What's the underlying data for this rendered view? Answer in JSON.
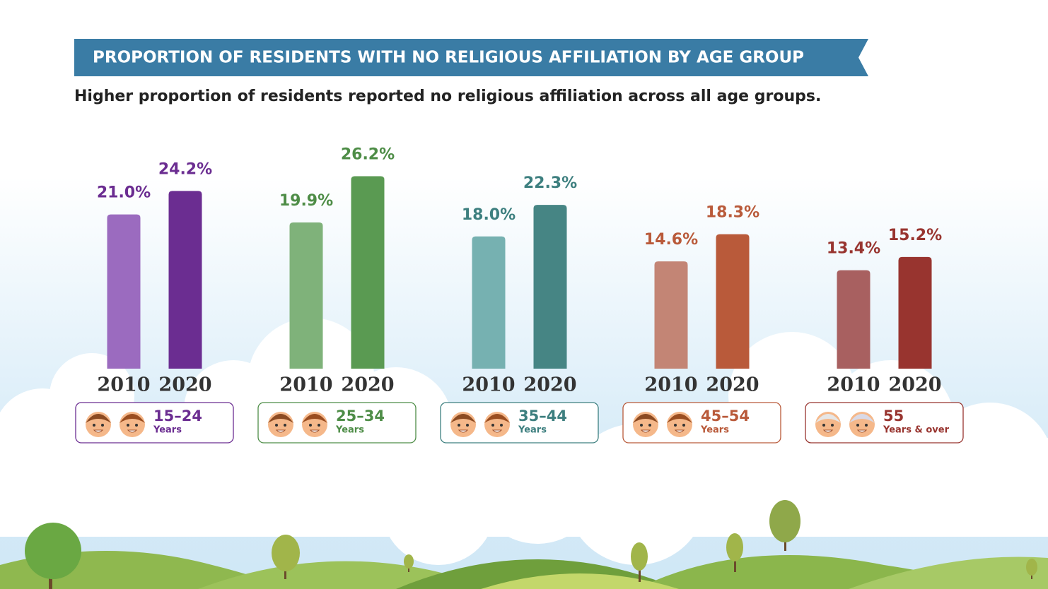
{
  "chart_data": {
    "type": "bar",
    "title": "PROPORTION OF RESIDENTS WITH NO RELIGIOUS AFFILIATION BY AGE GROUP",
    "subtitle": "Higher proportion of residents reported no religious affiliation across all age groups.",
    "categories": [
      "15–24",
      "25–34",
      "35–44",
      "45–54",
      "55"
    ],
    "category_sublabels": [
      "Years",
      "Years",
      "Years",
      "Years",
      "Years & over"
    ],
    "category_colors": [
      "#6b2d91",
      "#4e8d47",
      "#3d7f7f",
      "#b95a3a",
      "#98342f"
    ],
    "series": [
      {
        "name": "2010",
        "colors": [
          "#9b6bbf",
          "#7fb27a",
          "#76b1b1",
          "#c38575",
          "#a86060"
        ],
        "values": [
          21.0,
          19.9,
          18.0,
          14.6,
          13.4
        ],
        "value_labels": [
          "21.0%",
          "19.9%",
          "18.0%",
          "14.6%",
          "13.4%"
        ]
      },
      {
        "name": "2020",
        "colors": [
          "#6b2d91",
          "#5a9a52",
          "#468584",
          "#b95a3a",
          "#98342f"
        ],
        "values": [
          24.2,
          26.2,
          22.3,
          18.3,
          15.2
        ],
        "value_labels": [
          "24.2%",
          "26.2%",
          "22.3%",
          "18.3%",
          "15.2%"
        ]
      }
    ]
  }
}
